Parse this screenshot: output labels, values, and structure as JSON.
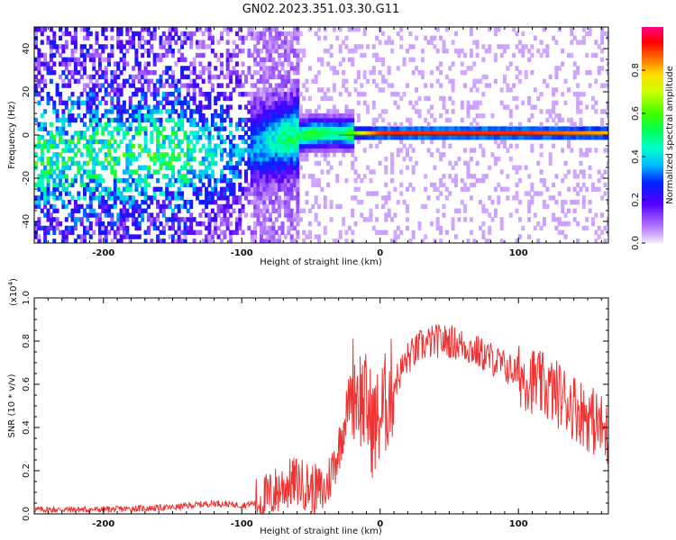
{
  "title": "GN02.2023.351.03.30.G11",
  "colorbar": {
    "label": "Normalized spectral amplitude",
    "ticks": [
      "0.0",
      "0.2",
      "0.4",
      "0.6",
      "0.8"
    ],
    "range": [
      0,
      1
    ]
  },
  "chart_data": [
    {
      "type": "heatmap",
      "xlabel": "Height of straight line (km)",
      "ylabel": "Frequency (Hz)",
      "xlim": [
        -250,
        165
      ],
      "ylim": [
        -50,
        50
      ],
      "xticks": [
        "-200",
        "-100",
        "0",
        "100"
      ],
      "yticks": [
        "-40",
        "-20",
        "0",
        "20",
        "40"
      ],
      "grid": false,
      "ridge": {
        "description_points_x": [
          -140,
          -120,
          -100,
          -80,
          -65,
          -50,
          -40,
          -30,
          -20,
          -10,
          0,
          50,
          100,
          140,
          165
        ],
        "frequency": [
          -10,
          -9,
          -7,
          -4,
          -2,
          0,
          0,
          0,
          0,
          0,
          0,
          0,
          0,
          0,
          0
        ],
        "amplitude": [
          0.35,
          0.3,
          0.25,
          0.35,
          0.45,
          0.55,
          0.5,
          0.45,
          0.6,
          0.8,
          0.9,
          0.9,
          0.9,
          0.85,
          0.8
        ]
      }
    },
    {
      "type": "line",
      "xlabel": "Height of straight line (km)",
      "ylabel": "SNR (10 * v/v)",
      "yscale_label": "(x10",
      "yscale_exp": "4",
      "yscale_close": ")",
      "xlim": [
        -250,
        165
      ],
      "ylim": [
        0,
        1.0
      ],
      "xticks": [
        "-200",
        "-100",
        "0",
        "100"
      ],
      "yticks": [
        "0.0",
        "0.2",
        "0.4",
        "0.6",
        "0.8",
        "1.0"
      ],
      "grid": false,
      "series_color": "#ee3333",
      "x": [
        -250,
        -200,
        -150,
        -120,
        -100,
        -90,
        -80,
        -70,
        -60,
        -50,
        -40,
        -30,
        -25,
        -20,
        -15,
        -10,
        -5,
        0,
        10,
        20,
        30,
        40,
        50,
        60,
        70,
        80,
        90,
        100,
        110,
        120,
        130,
        140,
        150,
        160,
        165
      ],
      "y": [
        0.02,
        0.02,
        0.03,
        0.05,
        0.04,
        0.05,
        0.08,
        0.13,
        0.15,
        0.12,
        0.1,
        0.3,
        0.45,
        0.6,
        0.55,
        0.5,
        0.4,
        0.45,
        0.6,
        0.72,
        0.78,
        0.8,
        0.8,
        0.78,
        0.75,
        0.72,
        0.68,
        0.65,
        0.62,
        0.58,
        0.55,
        0.5,
        0.45,
        0.4,
        0.35
      ]
    }
  ]
}
